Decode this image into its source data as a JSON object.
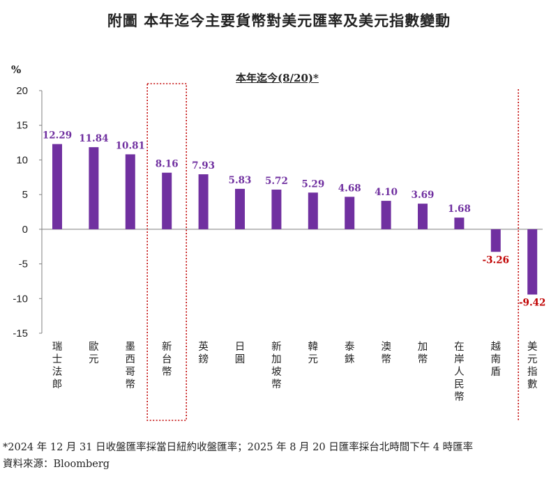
{
  "title": "附圖  本年迄今主要貨幣對美元匯率及美元指數變動",
  "unit": "%",
  "subtitle": "本年迄今(8/20)*",
  "footnote": "*2024 年 12 月 31 日收盤匯率採當日紐約收盤匯率；2025 年 8 月 20 日匯率採台北時間下午 4 時匯率",
  "source": "資料來源：Bloomberg",
  "colors": {
    "bar": "#7030a0",
    "positive_label": "#7030a0",
    "negative_label": "#c00000",
    "highlight_box": "#c00000"
  },
  "chart_data": {
    "type": "bar",
    "title": "本年迄今(8/20)*",
    "ylabel": "%",
    "ylim": [
      -15,
      20
    ],
    "yticks": [
      20,
      15,
      10,
      5,
      0,
      -5,
      -10,
      -15
    ],
    "ytick_labels": [
      "20",
      "15",
      "10",
      "5",
      "0",
      "-5",
      "-10",
      "-15"
    ],
    "categories": [
      "瑞士法郎",
      "歐元",
      "墨西哥幣",
      "新台幣",
      "英鎊",
      "日圓",
      "新加坡幣",
      "韓元",
      "泰銖",
      "澳幣",
      "加幣",
      "在岸人民幣",
      "越南盾",
      "美元指數"
    ],
    "values": [
      12.29,
      11.84,
      10.81,
      8.16,
      7.93,
      5.83,
      5.72,
      5.29,
      4.68,
      4.1,
      3.69,
      1.68,
      -3.26,
      -9.42
    ],
    "value_labels": [
      "12.29",
      "11.84",
      "10.81",
      "8.16",
      "7.93",
      "5.83",
      "5.72",
      "5.29",
      "4.68",
      "4.10",
      "3.69",
      "1.68",
      "-3.26",
      "-9.42"
    ],
    "highlighted_category": "新台幣",
    "separated_category": "美元指數",
    "grid": false,
    "legend": "none"
  }
}
